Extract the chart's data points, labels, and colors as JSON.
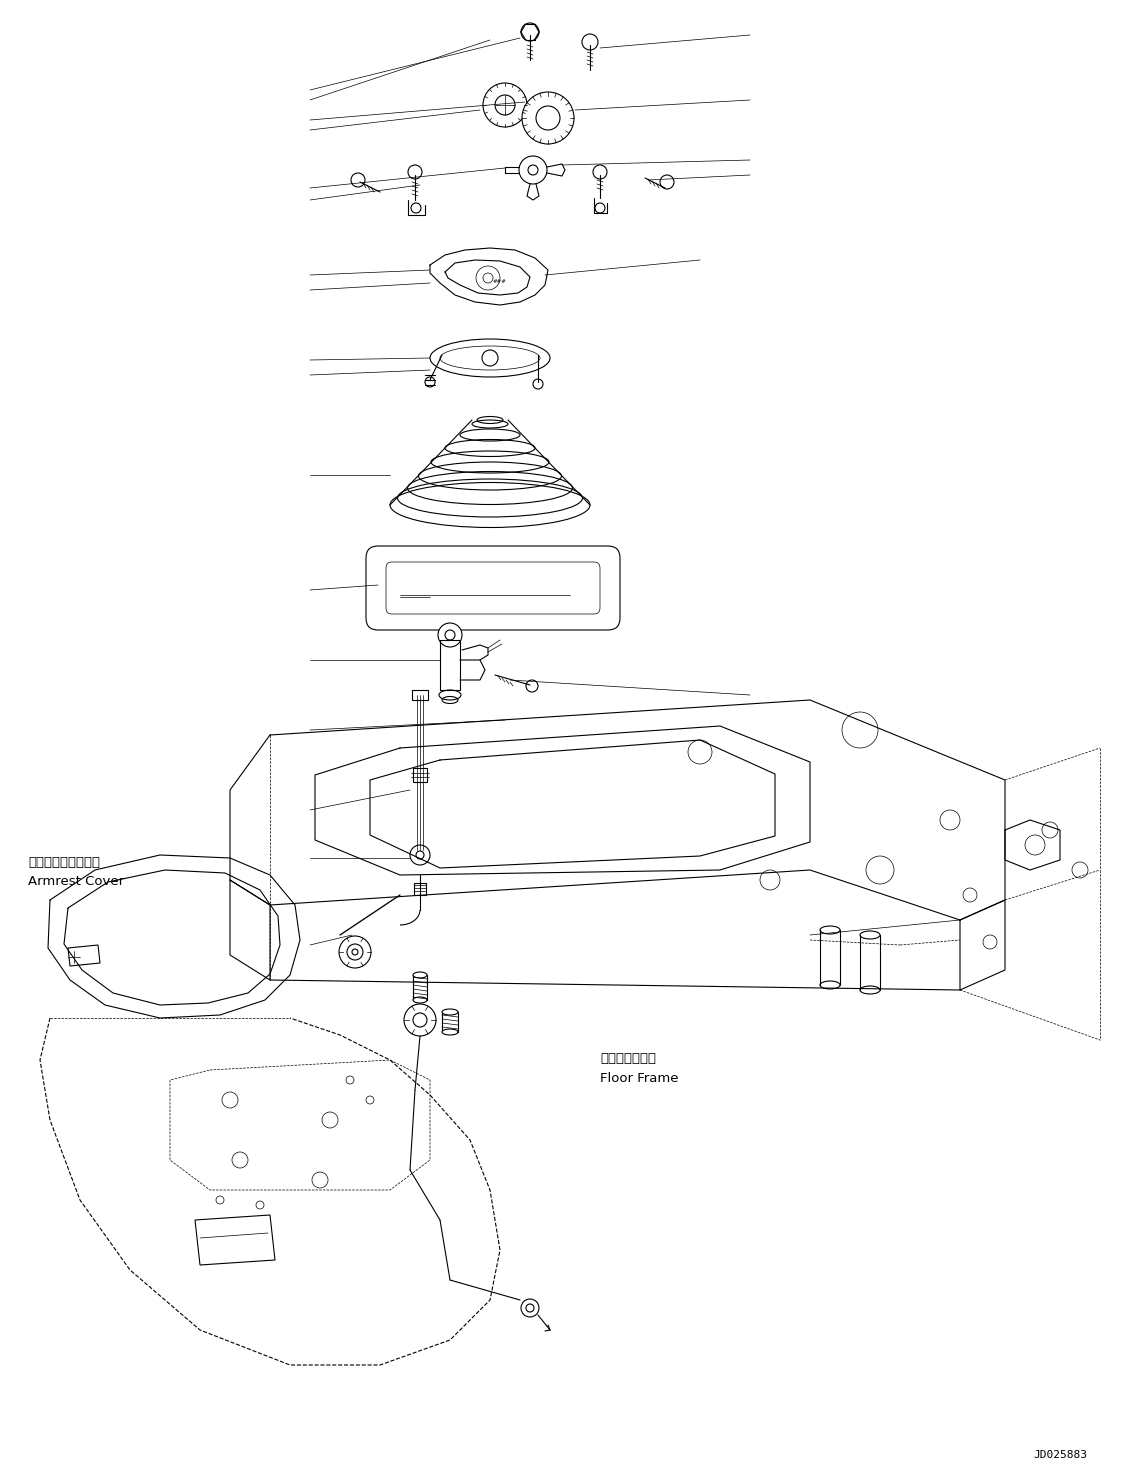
{
  "fig_width": 11.43,
  "fig_height": 14.79,
  "bg_color": "#ffffff",
  "line_color": "#000000",
  "lw": 0.8,
  "tlw": 0.5,
  "label_armrest_jp": "アームレストカバー",
  "label_armrest_en": "Armrest Cover",
  "label_floor_jp": "フロアフレーム",
  "label_floor_en": "Floor Frame",
  "watermark": "JD025883"
}
